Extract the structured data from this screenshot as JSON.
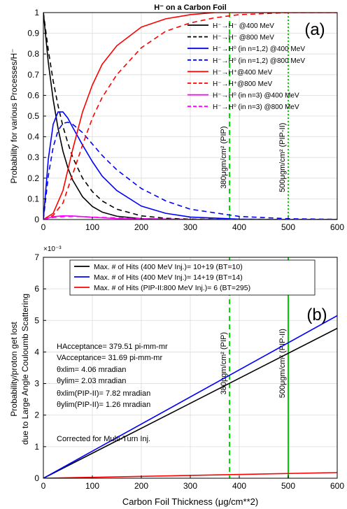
{
  "chart_data": [
    {
      "type": "line",
      "panel_label": "(a)",
      "title": "H⁻ on a Carbon Foil",
      "xlabel": "",
      "ylabel": "Probability for various Processes/H⁻",
      "xlim": [
        0,
        600
      ],
      "ylim": [
        0,
        1
      ],
      "xticks": [
        "0",
        "100",
        "200",
        "300",
        "400",
        "500",
        "600"
      ],
      "yticks": [
        "0",
        "0.1",
        "0.2",
        "0.3",
        "0.4",
        "0.5",
        "0.6",
        "0.7",
        "0.8",
        "0.9",
        "1"
      ],
      "grid": true,
      "legend_position": "top-right",
      "series": [
        {
          "name": "H⁻→H⁻ @400 MeV",
          "color": "#000000",
          "dash": "solid",
          "x": [
            0,
            10,
            20,
            30,
            40,
            50,
            60,
            80,
            100,
            120,
            150,
            200,
            300,
            600
          ],
          "y": [
            1.0,
            0.76,
            0.58,
            0.44,
            0.33,
            0.25,
            0.19,
            0.11,
            0.063,
            0.036,
            0.016,
            0.004,
            0.0,
            0.0
          ]
        },
        {
          "name": "H⁻→H⁻ @800 MeV",
          "color": "#000000",
          "dash": "dashed",
          "x": [
            0,
            10,
            20,
            30,
            40,
            50,
            60,
            80,
            100,
            120,
            150,
            200,
            250,
            300,
            600
          ],
          "y": [
            1.0,
            0.82,
            0.67,
            0.55,
            0.45,
            0.37,
            0.3,
            0.2,
            0.135,
            0.09,
            0.05,
            0.018,
            0.006,
            0.002,
            0.0
          ]
        },
        {
          "name": "H⁻→H⁰ (in n=1,2) @400 MeV",
          "color": "#0000ff",
          "dash": "solid",
          "x": [
            0,
            10,
            20,
            30,
            40,
            50,
            60,
            80,
            100,
            120,
            150,
            200,
            250,
            300,
            400,
            500,
            600
          ],
          "y": [
            0.0,
            0.29,
            0.46,
            0.52,
            0.52,
            0.49,
            0.445,
            0.36,
            0.28,
            0.21,
            0.14,
            0.065,
            0.03,
            0.012,
            0.002,
            0.0,
            0.0
          ]
        },
        {
          "name": "H⁻→H⁰ (in n=1,2) @800 MeV",
          "color": "#0000ff",
          "dash": "dashed",
          "x": [
            0,
            10,
            20,
            30,
            40,
            50,
            60,
            80,
            100,
            120,
            150,
            200,
            250,
            300,
            400,
            500,
            600
          ],
          "y": [
            0.0,
            0.21,
            0.35,
            0.43,
            0.465,
            0.47,
            0.46,
            0.42,
            0.365,
            0.31,
            0.24,
            0.15,
            0.09,
            0.05,
            0.015,
            0.004,
            0.001
          ]
        },
        {
          "name": "H⁻→H⁺@400 MeV",
          "color": "#ff0000",
          "dash": "solid",
          "x": [
            0,
            20,
            40,
            60,
            80,
            100,
            120,
            150,
            200,
            250,
            300,
            350,
            400,
            600
          ],
          "y": [
            0.0,
            0.03,
            0.14,
            0.34,
            0.52,
            0.65,
            0.75,
            0.84,
            0.93,
            0.97,
            0.99,
            1.0,
            1.0,
            1.0
          ]
        },
        {
          "name": "H⁻→H⁺@800 MeV",
          "color": "#ff0000",
          "dash": "dashed",
          "x": [
            0,
            20,
            40,
            60,
            80,
            100,
            120,
            150,
            200,
            250,
            300,
            350,
            400,
            450,
            500,
            600
          ],
          "y": [
            0.0,
            0.02,
            0.08,
            0.22,
            0.36,
            0.49,
            0.59,
            0.7,
            0.83,
            0.91,
            0.95,
            0.975,
            0.99,
            0.995,
            1.0,
            1.0
          ]
        },
        {
          "name": "H⁻→H⁰ (in n=3) @400 MeV",
          "color": "#ff00ff",
          "dash": "solid",
          "x": [
            0,
            20,
            40,
            60,
            80,
            100,
            150,
            200,
            300,
            600
          ],
          "y": [
            0.0,
            0.014,
            0.018,
            0.017,
            0.014,
            0.011,
            0.005,
            0.002,
            0.0,
            0.0
          ]
        },
        {
          "name": "H⁻→H⁰ (in n=3) @800 MeV",
          "color": "#ff00ff",
          "dash": "dashed",
          "x": [
            0,
            20,
            40,
            60,
            80,
            100,
            150,
            200,
            300,
            600
          ],
          "y": [
            0.0,
            0.01,
            0.014,
            0.015,
            0.014,
            0.012,
            0.008,
            0.004,
            0.001,
            0.0
          ]
        }
      ],
      "markers": [
        {
          "x": 380,
          "label": "380μgm/cm² (PIP)",
          "color": "#00dd00",
          "dash": "dashed"
        },
        {
          "x": 500,
          "label": "500μgm/cm² (PIP-II)",
          "color": "#00cc00",
          "dash": "dotted"
        }
      ]
    },
    {
      "type": "line",
      "panel_label": "(b)",
      "title": "",
      "xlabel": "Carbon Foil Thickness (μg/cm**2)",
      "ylabel_line1": "Probability/proton get lost",
      "ylabel_line2": "due to Large Angle Couloumb Scattering",
      "exponent_label": "×10⁻³",
      "xlim": [
        0,
        600
      ],
      "ylim": [
        0,
        0.007
      ],
      "xticks": [
        "0",
        "100",
        "200",
        "300",
        "400",
        "500",
        "600"
      ],
      "yticks": [
        "0",
        "1",
        "2",
        "3",
        "4",
        "5",
        "6",
        "7"
      ],
      "grid": true,
      "legend_position": "top",
      "series": [
        {
          "name": "Max. # of Hits (400 MeV Inj.)= 10+19 (BT=10)",
          "color": "#000000",
          "dash": "solid",
          "x": [
            0,
            600
          ],
          "y": [
            0.0,
            0.00475
          ]
        },
        {
          "name": "Max. # of Hits (400 MeV Inj.)= 14+19 (BT=14)",
          "color": "#0000ff",
          "dash": "solid",
          "x": [
            0,
            600
          ],
          "y": [
            0.0,
            0.00515
          ]
        },
        {
          "name": "Max. # of Hits (PIP-II:800 MeV Inj.)= 6 (BT=295)",
          "color": "#ff0000",
          "dash": "solid",
          "x": [
            0,
            600
          ],
          "y": [
            0.0,
            0.00018
          ]
        }
      ],
      "markers": [
        {
          "x": 380,
          "label": "380μgm/cm² (PIP)",
          "color": "#00dd00",
          "dash": "dashed"
        },
        {
          "x": 500,
          "label": "500μgm/cm² (PIP-II)",
          "color": "#00cc00",
          "dash": "solid"
        }
      ],
      "annotations": [
        "HAcceptance= 379.51 pi-mm-mr",
        "VAcceptance= 31.69 pi-mm-mr",
        "θxlim= 4.06 mradian",
        "θylim= 2.03 mradian",
        "θxlim(PIP-II)= 7.82 mradian",
        "θylim(PIP-II)= 1.26 mradian",
        "Corrected for Multi-Turn Inj."
      ]
    }
  ]
}
